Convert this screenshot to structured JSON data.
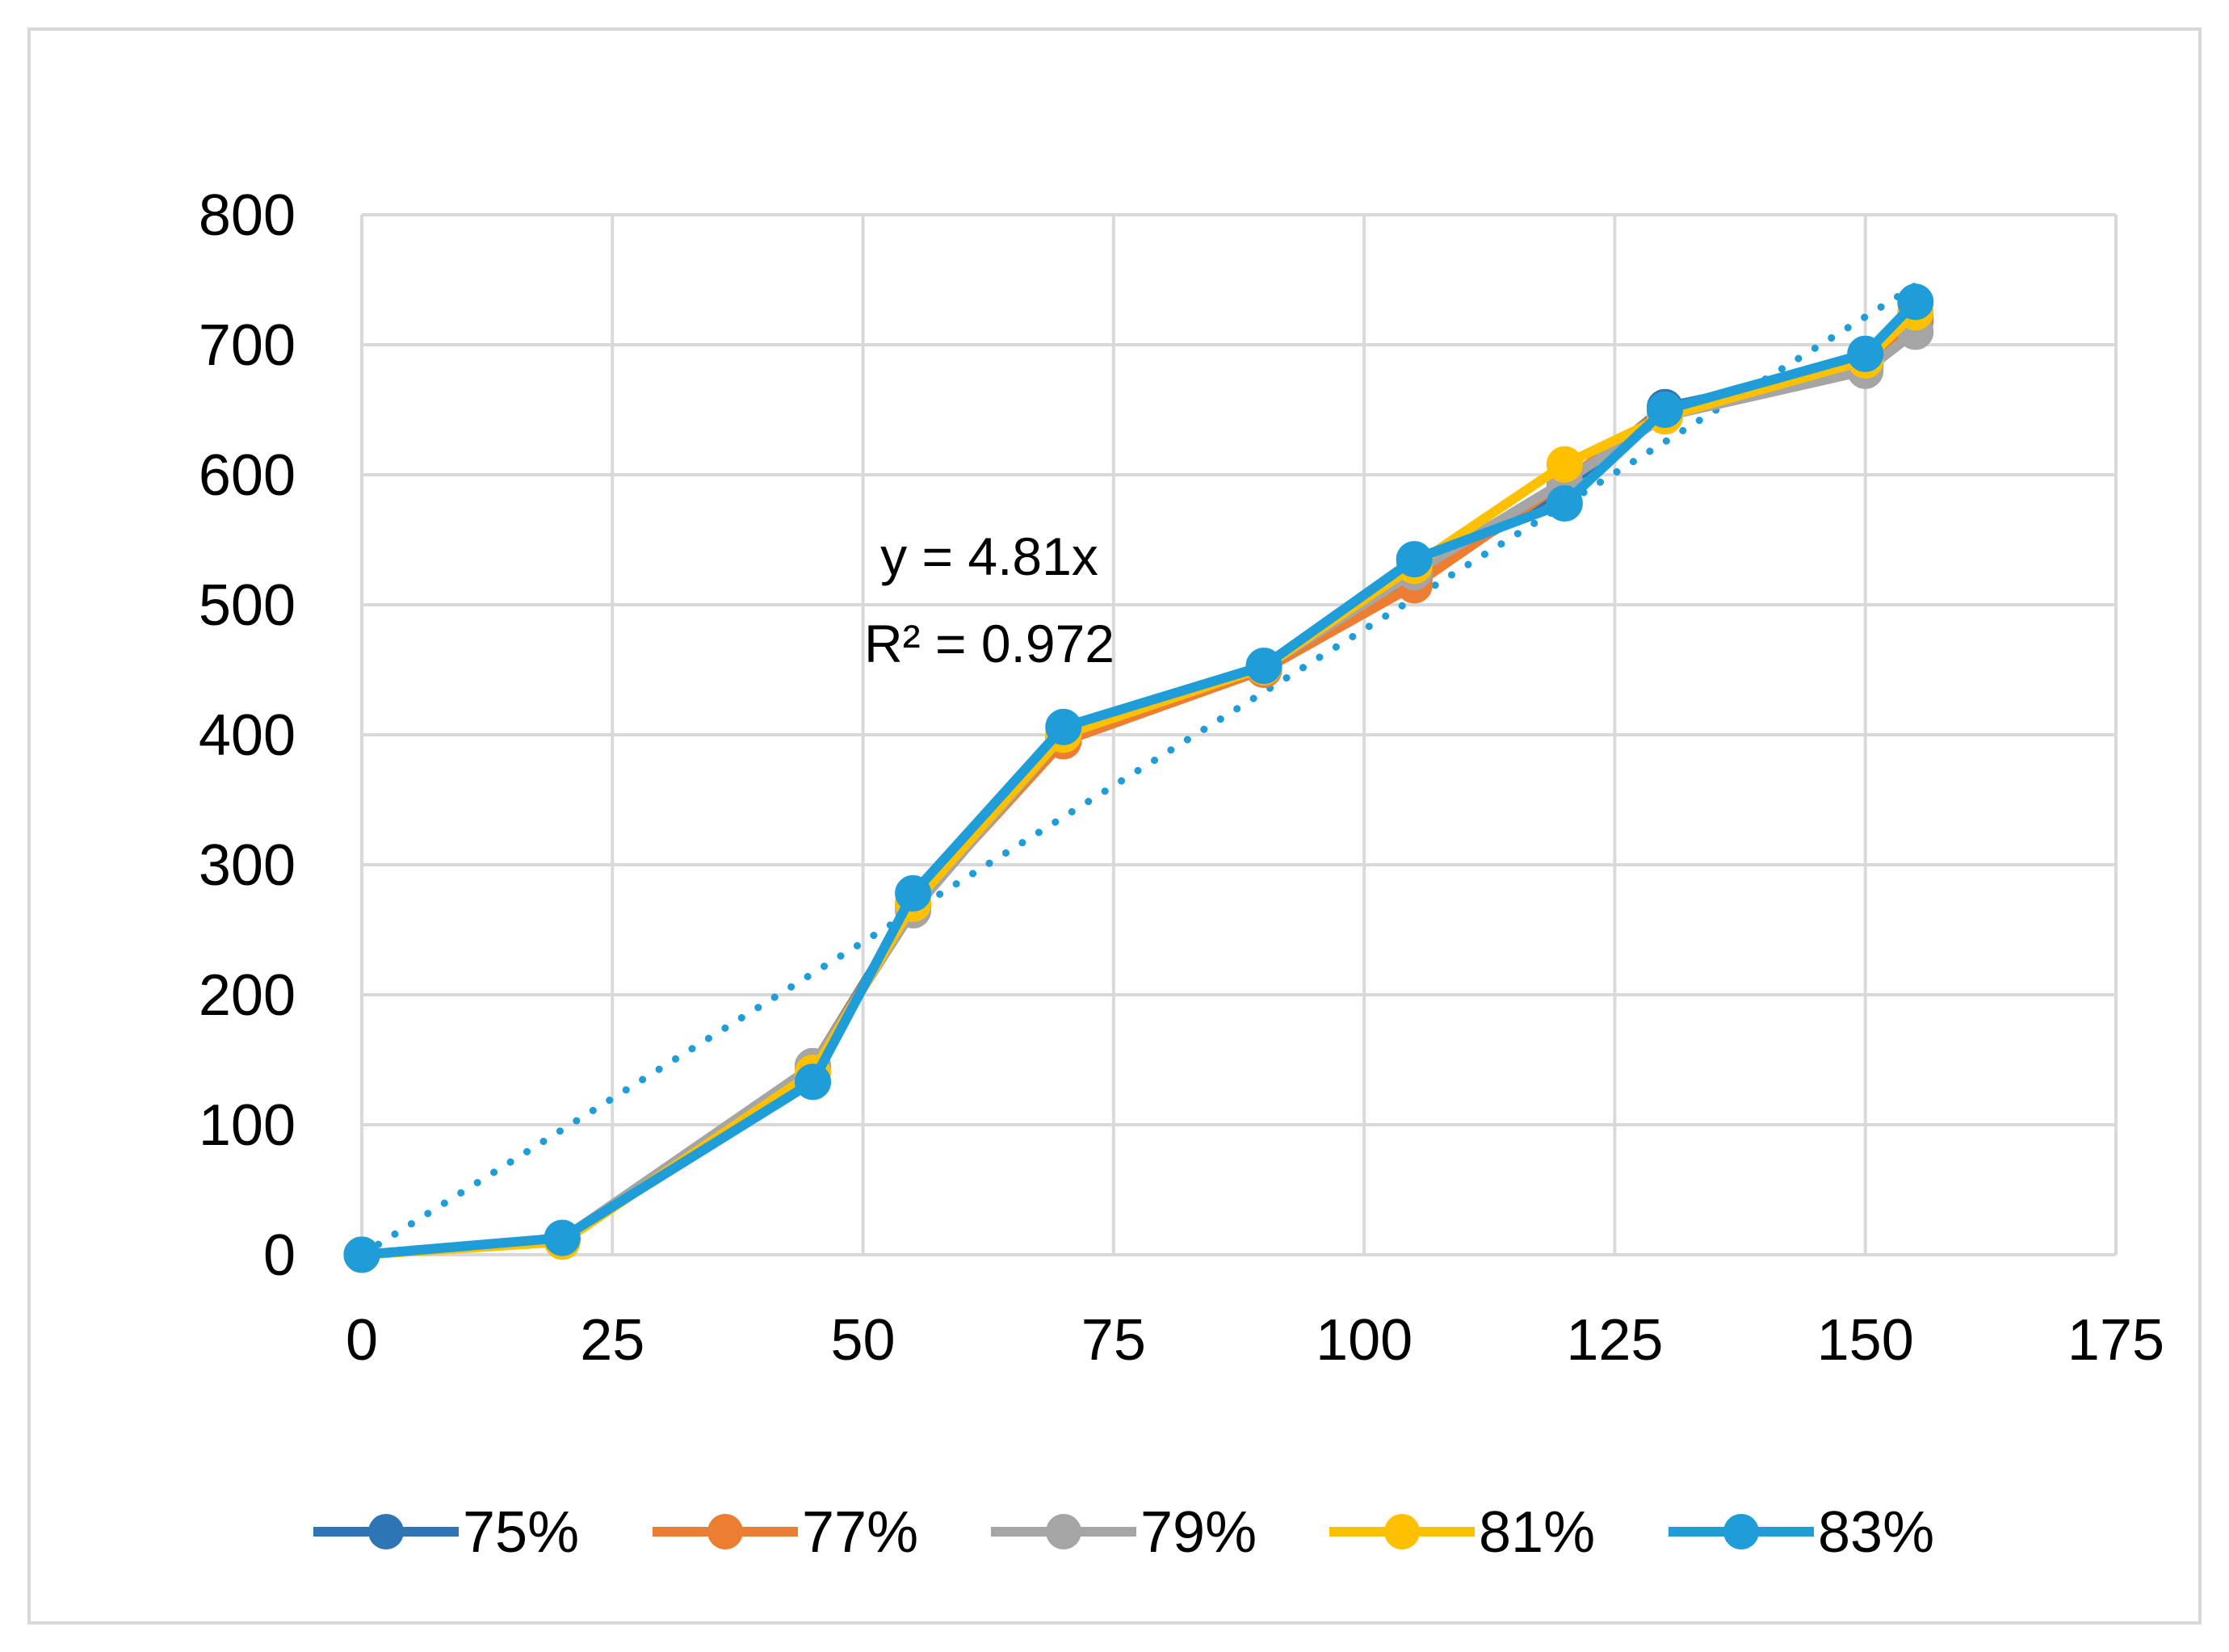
{
  "chart_data": {
    "type": "line",
    "title": "",
    "xlabel": "",
    "ylabel": "",
    "xlim": [
      0,
      175
    ],
    "ylim": [
      0,
      800
    ],
    "x_ticks": [
      0,
      25,
      50,
      75,
      100,
      125,
      150,
      175
    ],
    "y_ticks": [
      0,
      100,
      200,
      300,
      400,
      500,
      600,
      700,
      800
    ],
    "x_tick_labels": [
      "0",
      "25",
      "50",
      "75",
      "100",
      "125",
      "150",
      "175"
    ],
    "y_tick_labels": [
      "0",
      "100",
      "200",
      "300",
      "400",
      "500",
      "600",
      "700",
      "800"
    ],
    "grid": true,
    "legend_position": "bottom",
    "x": [
      0,
      20,
      45,
      55,
      70,
      90,
      105,
      120,
      130,
      150,
      155
    ],
    "series": [
      {
        "name": "75%",
        "color": "#2E75B6",
        "values": [
          0,
          12,
          145,
          270,
          398,
          452,
          520,
          590,
          652,
          685,
          720
        ]
      },
      {
        "name": "77%",
        "color": "#ED7D31",
        "values": [
          0,
          11,
          145,
          268,
          395,
          450,
          515,
          595,
          650,
          682,
          718
        ]
      },
      {
        "name": "79%",
        "color": "#A5A5A5",
        "values": [
          0,
          12,
          145,
          265,
          400,
          452,
          525,
          595,
          645,
          680,
          710
        ]
      },
      {
        "name": "81%",
        "color": "#FFC000",
        "values": [
          0,
          10,
          140,
          270,
          400,
          452,
          530,
          608,
          645,
          688,
          725
        ]
      },
      {
        "name": "83%",
        "color": "#1F9DD9",
        "values": [
          0,
          13,
          133,
          278,
          406,
          453,
          535,
          578,
          650,
          693,
          733
        ]
      }
    ],
    "trendline": {
      "series": "83%",
      "type": "linear",
      "slope": 4.81,
      "intercept": 0,
      "x_range": [
        0,
        155
      ],
      "color": "#1F9DD9",
      "style": "dotted"
    },
    "annotations": [
      "y = 4.81x",
      "R² = 0.972"
    ]
  }
}
